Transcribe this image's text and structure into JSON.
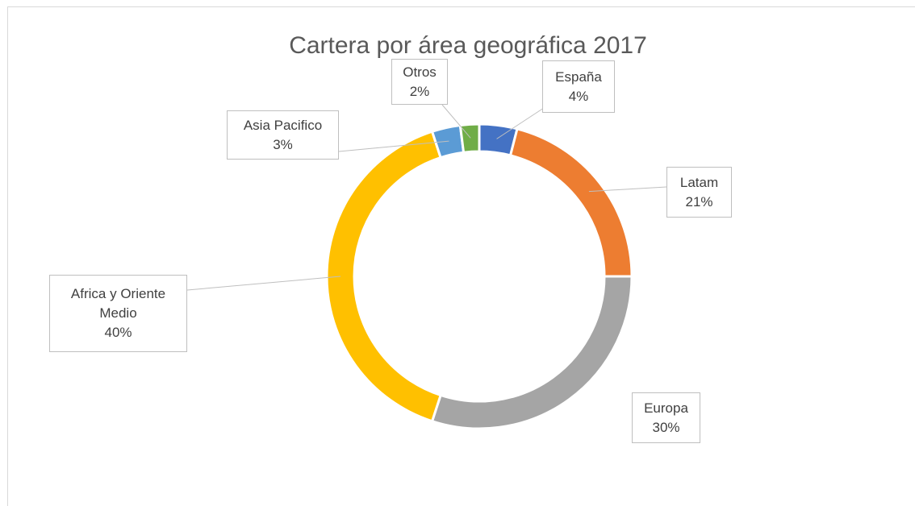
{
  "chart_data": {
    "type": "doughnut",
    "title": "Cartera por área geográfica 2017",
    "categories": [
      "España",
      "Latam",
      "Europa",
      "Africa y Oriente Medio",
      "Asia Pacifico",
      "Otros"
    ],
    "values": [
      4,
      21,
      30,
      40,
      3,
      2
    ],
    "value_labels": [
      "4%",
      "21%",
      "30%",
      "40%",
      "3%",
      "2%"
    ],
    "colors": [
      "#4472c4",
      "#ed7d31",
      "#a5a5a5",
      "#ffc000",
      "#5b9bd5",
      "#70ad47"
    ]
  }
}
